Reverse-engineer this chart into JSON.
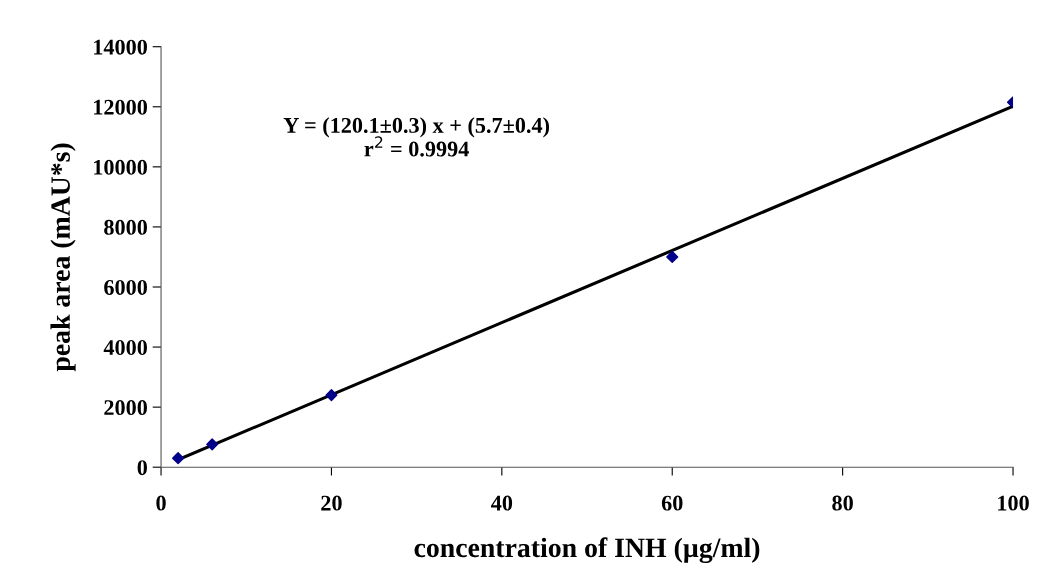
{
  "chart_data": {
    "type": "scatter",
    "xlabel": "concentration of INH (µg/ml)",
    "ylabel": "peak area (mAU*s)",
    "xlim": [
      0,
      100
    ],
    "xticks": [
      0,
      20,
      40,
      60,
      80,
      100
    ],
    "ylim": [
      0,
      14000
    ],
    "yticks": [
      0,
      2000,
      4000,
      6000,
      8000,
      10000,
      12000,
      14000
    ],
    "grid": false,
    "legend": false,
    "marker": "diamond",
    "series": [
      {
        "color": "#00008b",
        "x": [
          2,
          6,
          20,
          60,
          100
        ],
        "values": [
          300,
          760,
          2400,
          7000,
          12150
        ]
      },
      {
        "type": "line",
        "color": "#000000",
        "x": [
          2,
          100
        ],
        "values": [
          250,
          12020
        ],
        "marker": "none"
      }
    ],
    "annotations": [
      "Y = (120.1±0.3) x + (5.7±0.4)\nr$^{2}$ = 0.9994"
    ]
  }
}
